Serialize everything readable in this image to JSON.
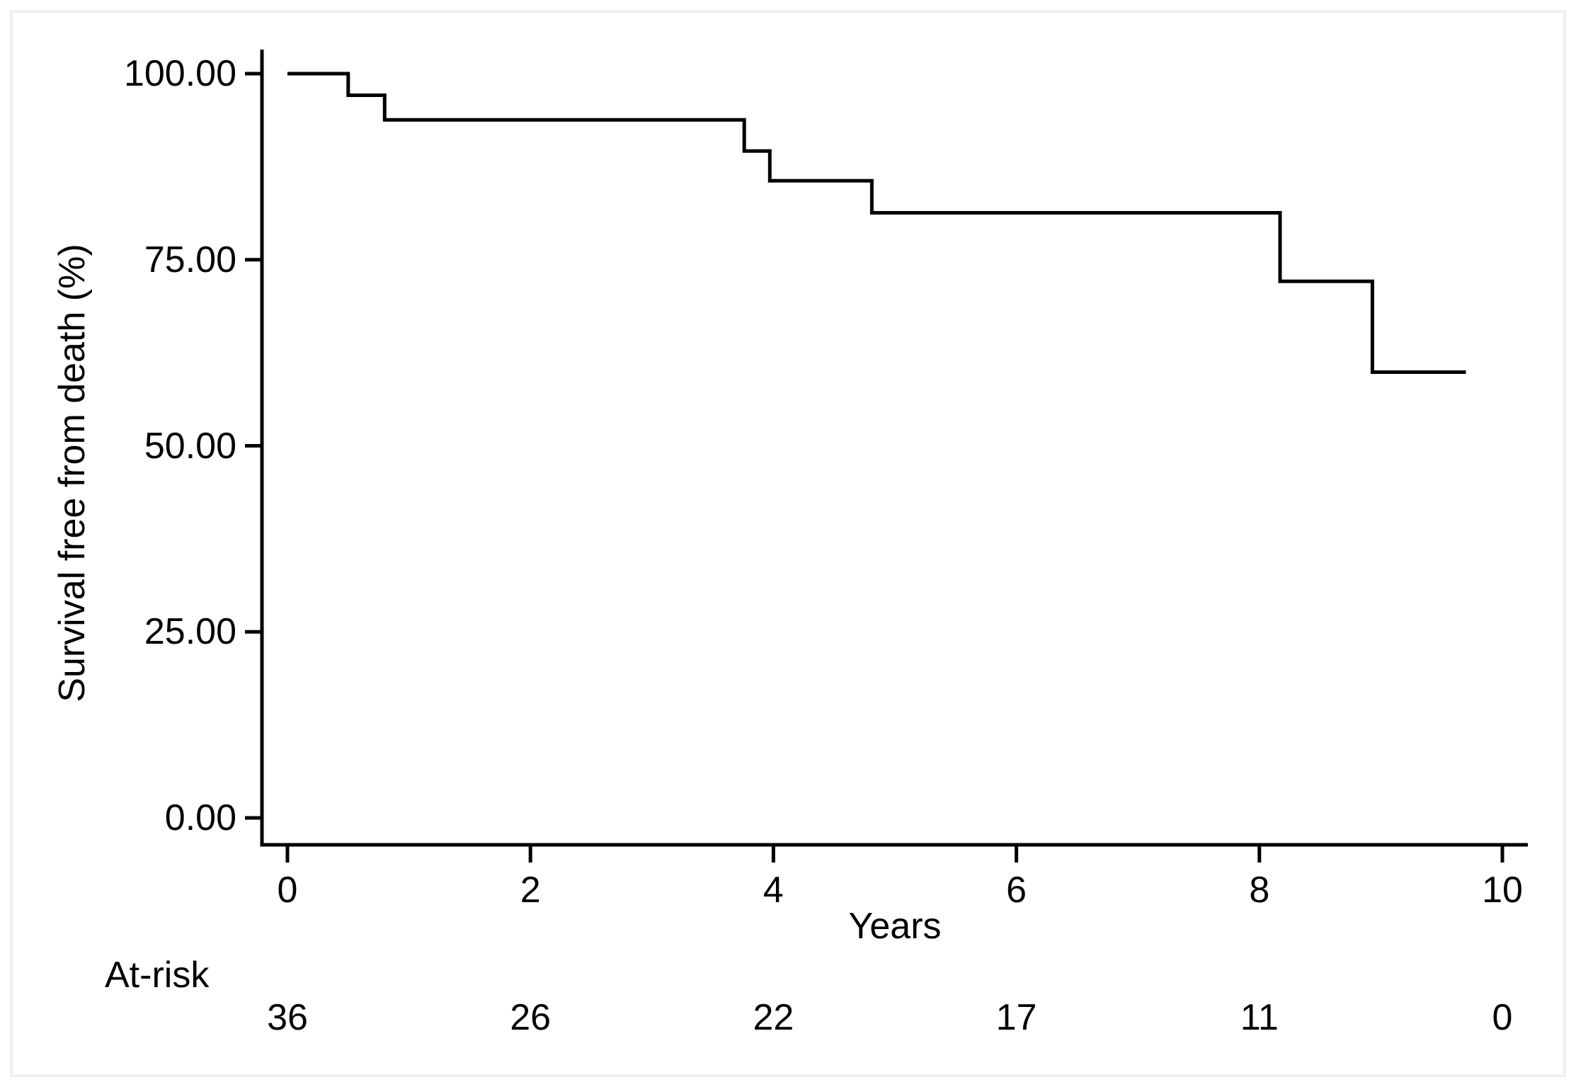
{
  "figure": {
    "background_color": "#ffffff",
    "frame_color": "#f0f0f0",
    "text_color": "#000000"
  },
  "chart_data": {
    "type": "line",
    "subtype": "kaplan-meier-survival-step",
    "title": "",
    "xlabel": "Years",
    "ylabel": "Survival free from death (%)",
    "xlim": [
      0,
      10
    ],
    "ylim": [
      0,
      100
    ],
    "x_ticks": [
      0,
      2,
      4,
      6,
      8,
      10
    ],
    "x_tick_labels": [
      "0",
      "2",
      "4",
      "6",
      "8",
      "10"
    ],
    "y_ticks": [
      0,
      25,
      50,
      75,
      100
    ],
    "y_tick_labels": [
      "0.00",
      "25.00",
      "50.00",
      "75.00",
      "100.00"
    ],
    "grid": false,
    "legend": "none",
    "line_color": "#000000",
    "series": [
      {
        "name": "Survival free from death",
        "steps_t_pct": [
          [
            0,
            100
          ],
          [
            0.5,
            97.1
          ],
          [
            0.8,
            93.8
          ],
          [
            3.76,
            89.6
          ],
          [
            3.97,
            85.6
          ],
          [
            4.81,
            81.3
          ],
          [
            8.17,
            72.1
          ],
          [
            8.93,
            59.9
          ]
        ],
        "end_time": 9.7
      }
    ],
    "at_risk": {
      "label": "At-risk",
      "times": [
        0,
        2,
        4,
        6,
        8,
        10
      ],
      "counts": [
        "36",
        "26",
        "22",
        "17",
        "11",
        "0"
      ]
    }
  }
}
